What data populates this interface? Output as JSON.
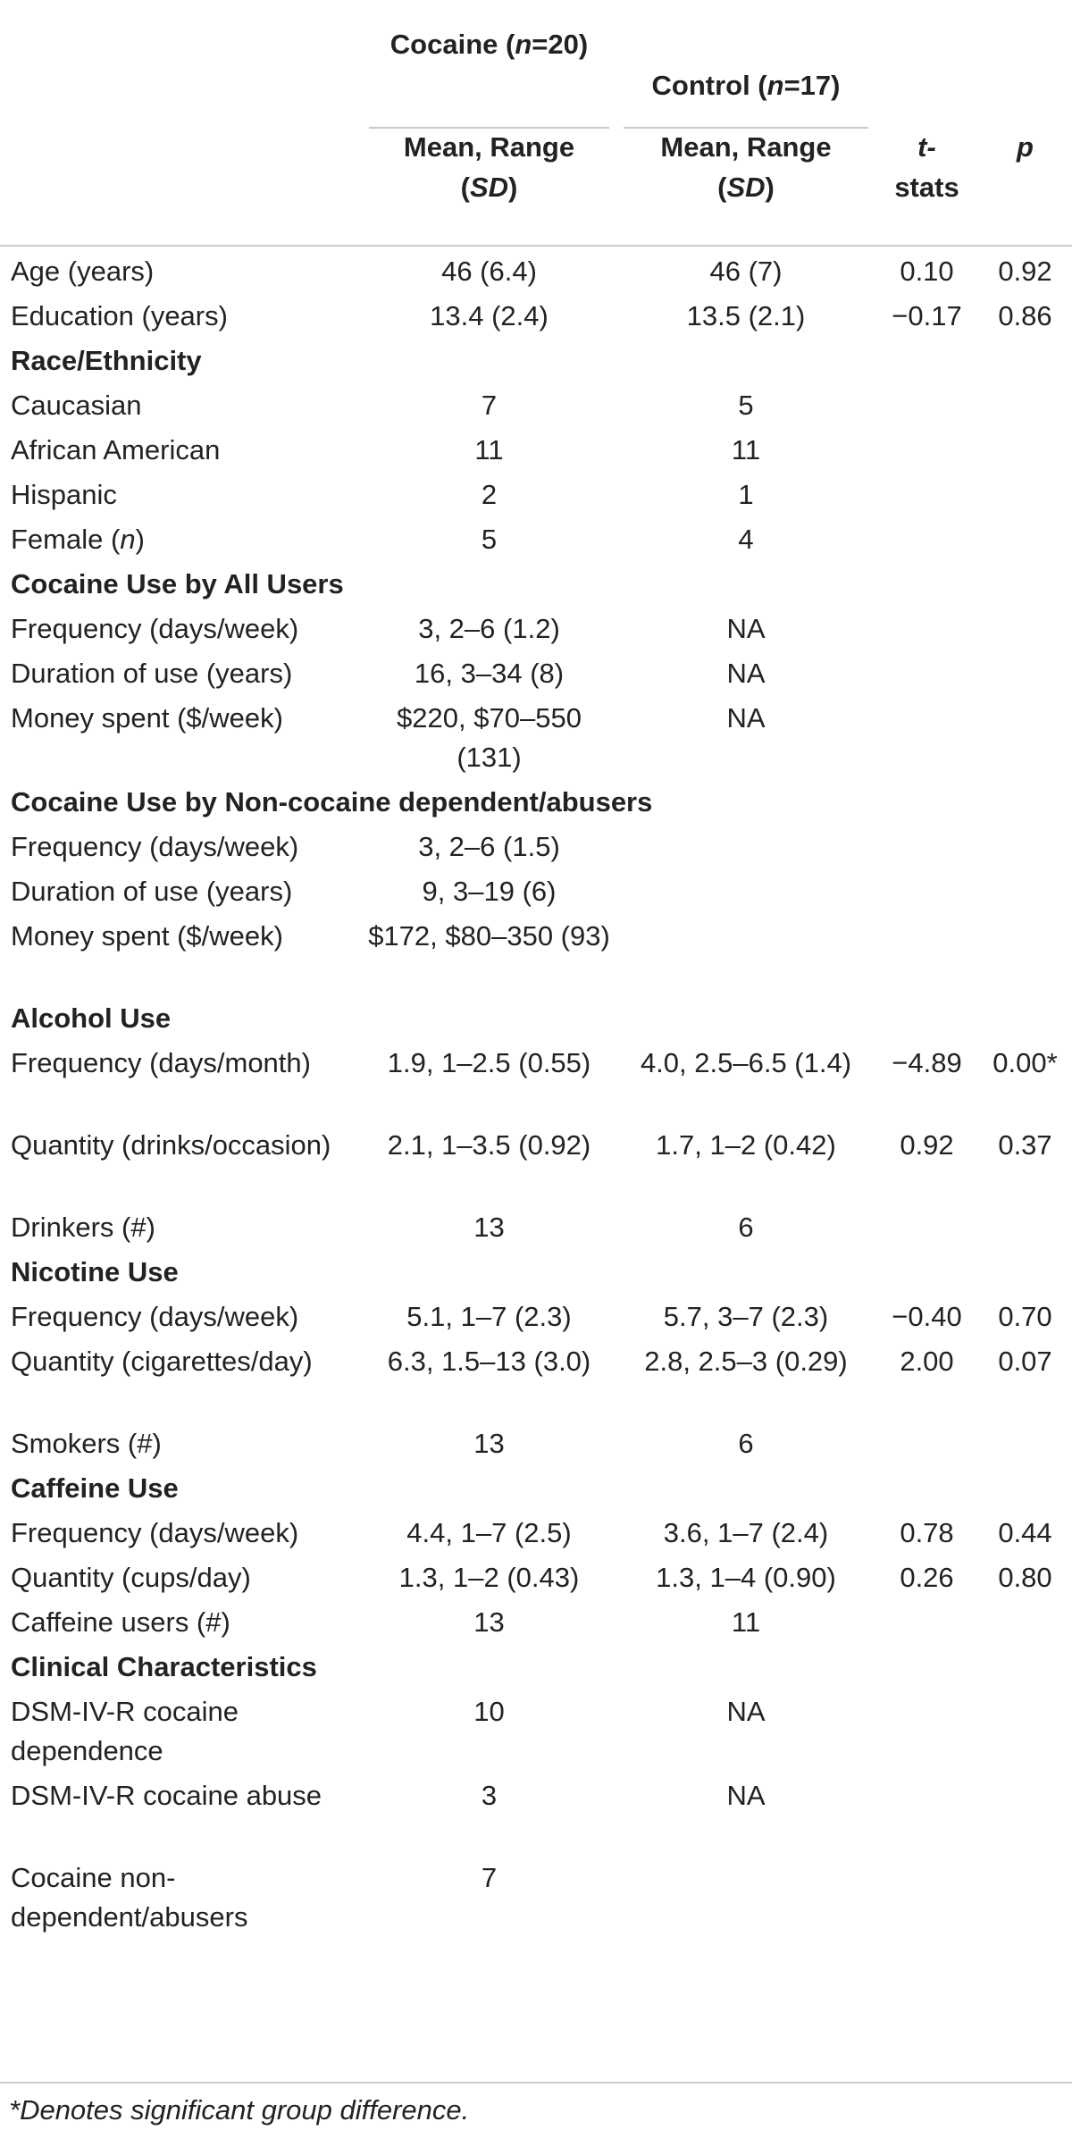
{
  "header": {
    "cocaine_group": "Cocaine (n=20)",
    "control_group": "Control (n=17)",
    "sub_mean_range": "Mean, Range",
    "sub_sd": "(SD)",
    "t_stats": "t-stats",
    "p": "p"
  },
  "rows": [
    {
      "type": "data",
      "label": "Age (years)",
      "cocaine": "46 (6.4)",
      "control": "46 (7)",
      "t": "0.10",
      "p": "0.92"
    },
    {
      "type": "data",
      "label": "Education (years)",
      "cocaine": "13.4 (2.4)",
      "control": "13.5 (2.1)",
      "t": "−0.17",
      "p": "0.86"
    },
    {
      "type": "section",
      "label": "Race/Ethnicity"
    },
    {
      "type": "data",
      "label": "Caucasian",
      "cocaine": "7",
      "control": "5",
      "t": "",
      "p": ""
    },
    {
      "type": "data",
      "label": "African American",
      "cocaine": "11",
      "control": "11",
      "t": "",
      "p": ""
    },
    {
      "type": "data",
      "label": "Hispanic",
      "cocaine": "2",
      "control": "1",
      "t": "",
      "p": ""
    },
    {
      "type": "data",
      "label": "Female (n)",
      "cocaine": "5",
      "control": "4",
      "t": "",
      "p": ""
    },
    {
      "type": "section",
      "label": "Cocaine Use by All Users"
    },
    {
      "type": "data",
      "label": "Frequency (days/week)",
      "cocaine": "3, 2–6 (1.2)",
      "control": "NA",
      "t": "",
      "p": ""
    },
    {
      "type": "data",
      "label": "Duration of use (years)",
      "cocaine": "16, 3–34 (8)",
      "control": "NA",
      "t": "",
      "p": ""
    },
    {
      "type": "data",
      "label": "Money spent ($/week)",
      "cocaine": "$220, $70–550 (131)",
      "control": "NA",
      "t": "",
      "p": "",
      "tall": true
    },
    {
      "type": "section",
      "label": "Cocaine Use by Non-cocaine dependent/abusers"
    },
    {
      "type": "data",
      "label": "Frequency (days/week)",
      "cocaine": "3, 2–6 (1.5)",
      "control": "",
      "t": "",
      "p": ""
    },
    {
      "type": "data",
      "label": "Duration of use (years)",
      "cocaine": "9, 3–19 (6)",
      "control": "",
      "t": "",
      "p": ""
    },
    {
      "type": "data",
      "label": "Money spent ($/week)",
      "cocaine": "$172, $80–350 (93)",
      "control": "",
      "t": "",
      "p": "",
      "tall": true
    },
    {
      "type": "section",
      "label": "Alcohol Use"
    },
    {
      "type": "data",
      "label": "Frequency (days/month)",
      "cocaine": "1.9, 1–2.5 (0.55)",
      "control": "4.0, 2.5–6.5 (1.4)",
      "t": "−4.89",
      "p": "0.00*",
      "tall": true
    },
    {
      "type": "data",
      "label": "Quantity (drinks/occasion)",
      "cocaine": "2.1, 1–3.5 (0.92)",
      "control": "1.7, 1–2 (0.42)",
      "t": "0.92",
      "p": "0.37",
      "tall": true
    },
    {
      "type": "data",
      "label": "Drinkers (#)",
      "cocaine": "13",
      "control": "6",
      "t": "",
      "p": ""
    },
    {
      "type": "section",
      "label": "Nicotine Use"
    },
    {
      "type": "data",
      "label": "Frequency (days/week)",
      "cocaine": "5.1, 1–7 (2.3)",
      "control": "5.7, 3–7 (2.3)",
      "t": "−0.40",
      "p": "0.70"
    },
    {
      "type": "data",
      "label": "Quantity (cigarettes/day)",
      "cocaine": "6.3, 1.5–13 (3.0)",
      "control": "2.8, 2.5–3 (0.29)",
      "t": "2.00",
      "p": "0.07",
      "tall": true
    },
    {
      "type": "data",
      "label": "Smokers (#)",
      "cocaine": "13",
      "control": "6",
      "t": "",
      "p": ""
    },
    {
      "type": "section",
      "label": "Caffeine Use"
    },
    {
      "type": "data",
      "label": "Frequency (days/week)",
      "cocaine": "4.4, 1–7 (2.5)",
      "control": "3.6, 1–7 (2.4)",
      "t": "0.78",
      "p": "0.44"
    },
    {
      "type": "data",
      "label": "Quantity (cups/day)",
      "cocaine": "1.3, 1–2 (0.43)",
      "control": "1.3, 1–4 (0.90)",
      "t": "0.26",
      "p": "0.80"
    },
    {
      "type": "data",
      "label": "Caffeine users (#)",
      "cocaine": "13",
      "control": "11",
      "t": "",
      "p": ""
    },
    {
      "type": "section",
      "label": "Clinical Characteristics"
    },
    {
      "type": "data",
      "label": "DSM-IV-R cocaine dependence",
      "cocaine": "10",
      "control": "NA",
      "t": "",
      "p": "",
      "tall": true
    },
    {
      "type": "data",
      "label": "DSM-IV-R cocaine abuse",
      "cocaine": "3",
      "control": "NA",
      "t": "",
      "p": "",
      "tall": true
    },
    {
      "type": "data",
      "label": "Cocaine non-dependent/abusers",
      "cocaine": "7",
      "control": "",
      "t": "",
      "p": "",
      "tall": true
    }
  ],
  "footnote": "*Denotes significant group difference."
}
